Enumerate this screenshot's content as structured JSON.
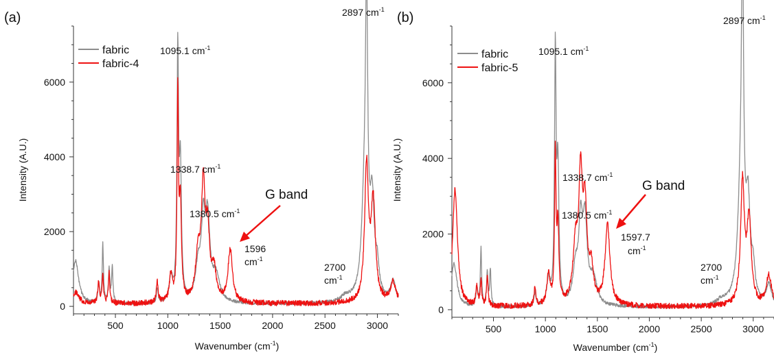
{
  "chart_data": [
    {
      "panel_label": "(a)",
      "type": "line",
      "xlabel_base": "Wavenumber (cm",
      "xlabel_sup": "-1",
      "xlabel_end": ")",
      "ylabel": "Intensity (A.U.)",
      "xlim": [
        100,
        3200
      ],
      "ylim": [
        -200,
        7500
      ],
      "xticks": [
        500,
        1000,
        1500,
        2000,
        2500,
        3000
      ],
      "yticks": [
        0,
        2000,
        4000,
        6000
      ],
      "legend_position": "top-left",
      "grid": false,
      "colors": {
        "fabric": "#8c8c8c",
        "treated": "#ee1111",
        "arrow": "#ee1111"
      },
      "series": [
        {
          "name": "fabric",
          "baseline": 60,
          "peaks": [
            [
              120,
              1150,
              35
            ],
            [
              340,
              500,
              10
            ],
            [
              380,
              1550,
              7
            ],
            [
              440,
              900,
              8
            ],
            [
              470,
              950,
              8
            ],
            [
              900,
              400,
              9
            ],
            [
              1030,
              650,
              20
            ],
            [
              1095.1,
              6500,
              9
            ],
            [
              1120,
              3500,
              12
            ],
            [
              1290,
              900,
              30
            ],
            [
              1338.7,
              1900,
              22
            ],
            [
              1380.5,
              2100,
              25
            ],
            [
              1460,
              700,
              40
            ],
            [
              2700,
              150,
              60
            ],
            [
              2880,
              2800,
              35
            ],
            [
              2897,
              6500,
              12
            ],
            [
              2950,
              2400,
              25
            ],
            [
              3000,
              700,
              20
            ],
            [
              3150,
              550,
              30
            ]
          ]
        },
        {
          "name": "fabric-4",
          "baseline": 70,
          "peaks": [
            [
              120,
              300,
              40
            ],
            [
              340,
              550,
              10
            ],
            [
              380,
              700,
              8
            ],
            [
              440,
              850,
              8
            ],
            [
              900,
              550,
              10
            ],
            [
              1030,
              700,
              18
            ],
            [
              1095.1,
              5500,
              8
            ],
            [
              1120,
              2600,
              12
            ],
            [
              1290,
              1200,
              30
            ],
            [
              1338.7,
              2900,
              20
            ],
            [
              1380.5,
              1700,
              22
            ],
            [
              1440,
              800,
              25
            ],
            [
              1596,
              1400,
              26
            ],
            [
              2897,
              3600,
              22
            ],
            [
              2960,
              2600,
              25
            ],
            [
              3150,
              550,
              30
            ]
          ]
        }
      ],
      "annotations": [
        {
          "base": "1095.1 cm",
          "sup": "-1",
          "x": 1095.1,
          "y": 6500
        },
        {
          "base": "1338.7 cm",
          "sup": "-1",
          "x": 1338.7,
          "y": 2900
        },
        {
          "base": "1380.5 cm",
          "sup": "-1",
          "x": 1380.5,
          "y": 1700
        },
        {
          "line1": "1596",
          "line2_base": "cm",
          "line2_sup": "-1",
          "x": 1596,
          "y": 1400
        },
        {
          "line1": "2700",
          "line2_base": "cm",
          "line2_sup": "-1",
          "x": 2700,
          "y": 150
        },
        {
          "base": "2897 cm",
          "sup": "-1",
          "x": 2897,
          "y": 7300
        },
        {
          "arrow_label": "G band",
          "x": 1596,
          "y": 1400
        }
      ]
    },
    {
      "panel_label": "(b)",
      "type": "line",
      "xlabel_base": "Wavenumber (cm",
      "xlabel_sup": "-1",
      "xlabel_end": ")",
      "ylabel": "Intensity (A.U.)",
      "xlim": [
        100,
        3200
      ],
      "ylim": [
        -200,
        7500
      ],
      "xticks": [
        500,
        1000,
        1500,
        2000,
        2500,
        3000
      ],
      "yticks": [
        0,
        2000,
        4000,
        6000
      ],
      "legend_position": "top-left",
      "grid": false,
      "colors": {
        "fabric": "#8c8c8c",
        "treated": "#ee1111",
        "arrow": "#ee1111"
      },
      "series": [
        {
          "name": "fabric",
          "baseline": 60,
          "peaks": [
            [
              120,
              1150,
              35
            ],
            [
              340,
              500,
              10
            ],
            [
              380,
              1550,
              7
            ],
            [
              440,
              900,
              8
            ],
            [
              470,
              950,
              8
            ],
            [
              900,
              400,
              9
            ],
            [
              1030,
              650,
              20
            ],
            [
              1095.1,
              6500,
              9
            ],
            [
              1120,
              3500,
              12
            ],
            [
              1290,
              900,
              30
            ],
            [
              1338.7,
              1900,
              22
            ],
            [
              1380.5,
              2100,
              25
            ],
            [
              1460,
              700,
              40
            ],
            [
              2700,
              150,
              60
            ],
            [
              2880,
              2800,
              35
            ],
            [
              2897,
              7400,
              12
            ],
            [
              2950,
              2400,
              25
            ],
            [
              3000,
              700,
              20
            ],
            [
              3150,
              550,
              30
            ]
          ]
        },
        {
          "name": "fabric-5",
          "baseline": 80,
          "peaks": [
            [
              130,
              3100,
              28
            ],
            [
              340,
              500,
              10
            ],
            [
              380,
              700,
              8
            ],
            [
              440,
              800,
              8
            ],
            [
              900,
              500,
              10
            ],
            [
              1030,
              800,
              18
            ],
            [
              1095.1,
              3900,
              8
            ],
            [
              1120,
              2000,
              12
            ],
            [
              1290,
              1500,
              30
            ],
            [
              1338.7,
              3100,
              20
            ],
            [
              1380.5,
              2400,
              22
            ],
            [
              1440,
              900,
              25
            ],
            [
              1597.7,
              2100,
              28
            ],
            [
              2897,
              3200,
              22
            ],
            [
              2960,
              2200,
              25
            ],
            [
              3150,
              800,
              30
            ]
          ]
        }
      ],
      "annotations": [
        {
          "base": "1095.1 cm",
          "sup": "-1",
          "x": 1095.1,
          "y": 6500
        },
        {
          "base": "1338.7 cm",
          "sup": "-1",
          "x": 1338.7,
          "y": 3100
        },
        {
          "base": "1380.5 cm",
          "sup": "-1",
          "x": 1380.5,
          "y": 2400
        },
        {
          "line1": "1597.7",
          "line2_base": "cm",
          "line2_sup": "-1",
          "x": 1597.7,
          "y": 2100
        },
        {
          "line1": "2700",
          "line2_base": "cm",
          "line2_sup": "-1",
          "x": 2700,
          "y": 150
        },
        {
          "base": "2897 cm",
          "sup": "-1",
          "x": 2897,
          "y": 7400
        },
        {
          "arrow_label": "G band",
          "x": 1597.7,
          "y": 2100
        }
      ]
    }
  ]
}
